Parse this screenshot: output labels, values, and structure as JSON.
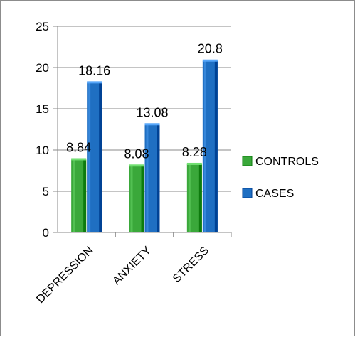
{
  "chart_data": {
    "type": "bar",
    "title": "",
    "xlabel": "",
    "ylabel": "",
    "categories": [
      "DEPRESSION",
      "ANXIETY",
      "STRESS"
    ],
    "series": [
      {
        "name": "CONTROLS",
        "values": [
          8.84,
          8.08,
          8.28
        ],
        "color": "#3aa83a"
      },
      {
        "name": "CASES",
        "values": [
          18.16,
          13.08,
          20.8
        ],
        "color": "#1f6fc2"
      }
    ],
    "data_labels": [
      [
        "8.84",
        "8.08",
        "8.28"
      ],
      [
        "18.16",
        "13.08",
        "20.8"
      ]
    ],
    "yticks": [
      0,
      5,
      10,
      15,
      20,
      25
    ],
    "ylim": [
      0,
      25
    ],
    "grid": true,
    "legend_position": "right"
  }
}
